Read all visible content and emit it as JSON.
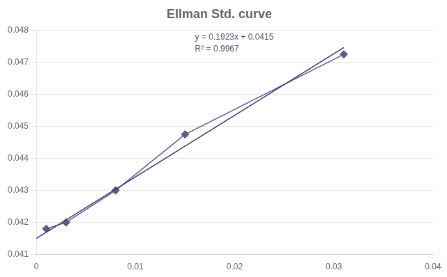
{
  "chart_data": {
    "type": "line",
    "title": "Ellman Std. curve",
    "series": [
      {
        "x": [
          0,
          0.031
        ],
        "values": [
          0.0415,
          0.0474613
        ],
        "color": "#3a3a6a",
        "marker": "none",
        "line_style": "solid"
      },
      {
        "x": [
          0.001,
          0.003,
          0.008,
          0.015,
          0.031
        ],
        "values": [
          0.0418,
          0.042,
          0.043,
          0.04475,
          0.04725
        ],
        "color": "#5c5c8a",
        "marker": "diamond",
        "line_style": "solid"
      }
    ],
    "annotations": [
      {
        "text": "y = 0.1923x + 0.0415",
        "color": "#555577"
      },
      {
        "text": "R² = 0.9967",
        "color": "#555577"
      }
    ],
    "xlim": [
      0,
      0.04
    ],
    "ylim": [
      0.041,
      0.048
    ],
    "xticks": [
      0,
      0.01,
      0.02,
      0.03,
      0.04
    ],
    "yticks": [
      0.041,
      0.042,
      0.043,
      0.044,
      0.045,
      0.046,
      0.047,
      0.048
    ],
    "grid": "y"
  }
}
